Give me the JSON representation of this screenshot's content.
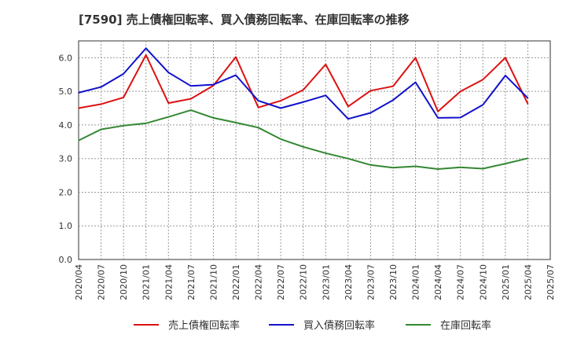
{
  "chart_data": {
    "type": "line",
    "title": "[7590]  売上債権回転率、買入債務回転率、在庫回転率の推移",
    "xlabel": "",
    "ylabel": "",
    "ylim": [
      0,
      6.5
    ],
    "yticks": [
      "0.0",
      "1.0",
      "2.0",
      "3.0",
      "4.0",
      "5.0",
      "6.0"
    ],
    "grid": true,
    "legend_position": "bottom",
    "x": [
      "2020/04",
      "2020/07",
      "2020/10",
      "2021/01",
      "2021/04",
      "2021/07",
      "2021/10",
      "2022/01",
      "2022/04",
      "2022/07",
      "2022/10",
      "2023/01",
      "2023/04",
      "2023/07",
      "2023/10",
      "2024/01",
      "2024/04",
      "2024/07",
      "2024/10",
      "2025/01",
      "2025/04",
      "2025/07"
    ],
    "series": [
      {
        "name": "売上債権回転率",
        "color": "#dd1111",
        "values": [
          4.5,
          4.62,
          4.82,
          6.08,
          4.65,
          4.78,
          5.17,
          6.02,
          4.52,
          4.72,
          5.04,
          5.8,
          4.55,
          5.02,
          5.15,
          6.0,
          4.4,
          5.0,
          5.35,
          6.0,
          4.63,
          null
        ]
      },
      {
        "name": "買入債務回転率",
        "color": "#1111cc",
        "values": [
          4.96,
          5.13,
          5.52,
          6.28,
          5.56,
          5.16,
          5.2,
          5.48,
          4.72,
          4.5,
          4.68,
          4.88,
          4.18,
          4.36,
          4.74,
          5.27,
          4.21,
          4.22,
          4.6,
          5.47,
          4.8,
          null
        ]
      },
      {
        "name": "在庫回転率",
        "color": "#338833",
        "values": [
          3.54,
          3.87,
          3.98,
          4.05,
          4.24,
          4.44,
          4.21,
          4.07,
          3.92,
          3.58,
          3.35,
          3.16,
          3.0,
          2.81,
          2.73,
          2.77,
          2.69,
          2.74,
          2.7,
          2.85,
          3.01,
          null
        ]
      }
    ]
  }
}
